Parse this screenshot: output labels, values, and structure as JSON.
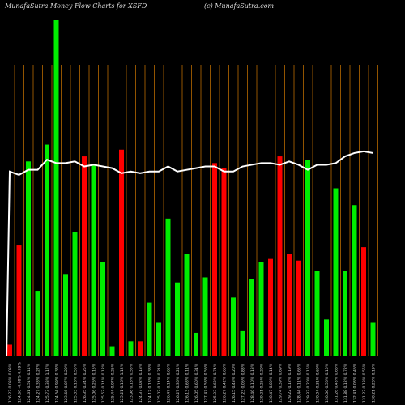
{
  "header": {
    "title": "MunafaSutra  Money Flow  Charts for XSFD",
    "credit": "(c) MunafaSutra.com"
  },
  "chart_data": {
    "type": "bar",
    "title": "MunafaSutra  Money Flow  Charts for XSFD",
    "ylim": [
      0,
      100
    ],
    "bar_colors": {
      "up": "#00ee00",
      "down": "#ff0000"
    },
    "line_color": "#ffffff",
    "gridline_color": "#b86a00",
    "categories": [
      "126.27 0.03% 0.03%",
      "124.66 -0.08% 0.09%",
      "124.61 0.51% 0.14%",
      "124.27 0.38% 0.27%",
      "125.73 0.33% 1.17%",
      "124.54 0.99% 0.33%",
      "123.66 0.07% 0.20%",
      "125.33 0.18% 0.55%",
      "126.35 0.34% 0.25%",
      "125.06 0.26% 0.15%",
      "125.52 0.14% 0.12%",
      "125.44 0.07% 0.25%",
      "125.21 0.16% 1.12%",
      "123.98 0.18% 0.55%",
      "124.37 0.02% 0.13%",
      "124.12 0.13% 0.33%",
      "125.02 0.14% 0.21%",
      "126.47 0.14% 0.65%",
      "126.27 0.36% 0.24%",
      "126.13 0.68% 0.11%",
      "126.05 0.60% 0.31%",
      "127.47 0.58% 0.56%",
      "125.93 0.62% 0.74%",
      "126.27 0.42% 0.66%",
      "126.15 0.43% 0.20%",
      "127.23 0.06% 0.83%",
      "128.46 0.10% 0.13%",
      "129.21 0.25% 0.20%",
      "130.47 0.09% 0.14%",
      "129.74 0.39% 0.69%",
      "129.22 0.12% 0.19%",
      "128.44 0.11% 0.65%",
      "129.37 0.20% 0.15%",
      "130.04 0.31% 0.69%",
      "130.06 0.56% 0.15%",
      "131.26 0.43% 0.66%",
      "131.88 0.12% 0.72%",
      "132.41 0.08% 0.46%",
      "131.23 0.18% 0.55%",
      "130.21 0.28% 0.19%"
    ],
    "values": [
      3.5,
      33,
      58,
      19.5,
      63,
      100,
      24.5,
      37,
      59.5,
      57,
      28,
      3,
      61.5,
      4.5,
      4.5,
      16,
      10,
      41,
      22,
      30.5,
      7,
      23.5,
      57.5,
      56,
      17.5,
      7.5,
      23,
      28,
      29,
      59.5,
      30.5,
      28.5,
      58.5,
      25.5,
      11,
      50,
      25.5,
      45,
      32.5,
      10
    ],
    "directions": [
      "down",
      "down",
      "up",
      "up",
      "up",
      "up",
      "up",
      "up",
      "down",
      "up",
      "up",
      "up",
      "down",
      "up",
      "down",
      "up",
      "up",
      "up",
      "up",
      "up",
      "up",
      "up",
      "down",
      "down",
      "up",
      "up",
      "up",
      "up",
      "down",
      "down",
      "down",
      "down",
      "up",
      "up",
      "up",
      "up",
      "up",
      "up",
      "down",
      "up"
    ],
    "line_values": [
      55,
      54,
      55.5,
      55.5,
      58.5,
      57.5,
      57.5,
      58,
      56.5,
      57,
      56.5,
      56,
      54.5,
      55,
      54.5,
      55,
      55,
      56.5,
      55,
      55.5,
      56,
      56.5,
      56.5,
      55,
      55,
      56.5,
      57,
      57.5,
      57.5,
      57,
      58,
      57,
      55.5,
      57,
      57,
      57.5,
      59.5,
      60.5,
      61,
      60.5
    ],
    "line_start": 0,
    "gridlines_at_bars": [
      1,
      2,
      3,
      4,
      5,
      6,
      7,
      8,
      9,
      10,
      11,
      12,
      13,
      14,
      15,
      16,
      17,
      18,
      19,
      20,
      21,
      22,
      23,
      24,
      25,
      26,
      27,
      28,
      29,
      30,
      31,
      32,
      33,
      34,
      35,
      36,
      37,
      38,
      39,
      40
    ]
  }
}
